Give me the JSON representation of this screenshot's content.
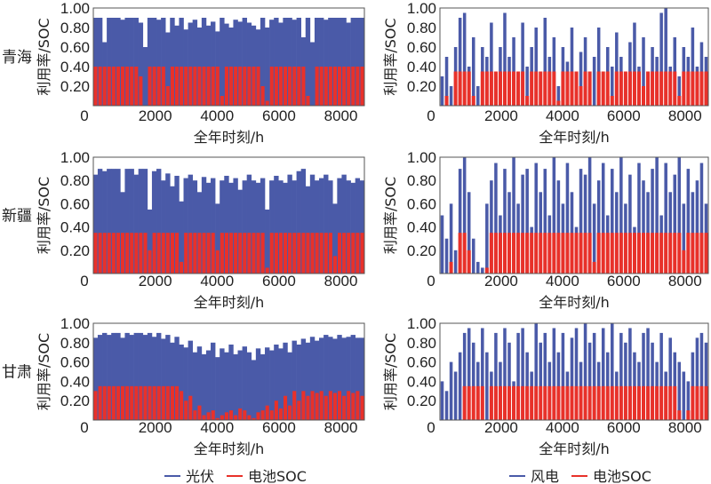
{
  "chart_data": [
    {
      "region": "青海",
      "type": "bar",
      "xlabel": "全年时刻/h",
      "ylabel": "利用率/SOC",
      "xlim": [
        0,
        8760
      ],
      "ylim": [
        0,
        1
      ],
      "xticks": [
        "0",
        "2000",
        "4000",
        "6000",
        "8000"
      ],
      "yticks": [
        "0.20",
        "0.40",
        "0.60",
        "0.80",
        "1.00"
      ],
      "series": [
        {
          "name": "光伏",
          "values": [
            0.9,
            0.9,
            0.65,
            0.9,
            0.9,
            0.9,
            0.88,
            0.9,
            0.9,
            0.9,
            0.85,
            0.6,
            0.9,
            0.9,
            0.88,
            0.9,
            0.75,
            0.9,
            0.82,
            0.9,
            0.78,
            0.85,
            0.88,
            0.8,
            0.9,
            0.82,
            0.86,
            0.76,
            0.9,
            0.84,
            0.8,
            0.88,
            0.86,
            0.9,
            0.85,
            0.82,
            0.78,
            0.9,
            0.8,
            0.88,
            0.9,
            0.85,
            0.9,
            0.9,
            0.88,
            0.9,
            0.7,
            0.9,
            0.65,
            0.9,
            0.9,
            0.88,
            0.9,
            0.9,
            0.9,
            0.9,
            0.85,
            0.9,
            0.9,
            0.9
          ]
        },
        {
          "name": "电池SOC",
          "values": [
            0.4,
            0.4,
            0.4,
            0.4,
            0.4,
            0.4,
            0.4,
            0.4,
            0.4,
            0.4,
            0.3,
            0,
            0.4,
            0.4,
            0.4,
            0.4,
            0.2,
            0.4,
            0.4,
            0.4,
            0.4,
            0.4,
            0.4,
            0.4,
            0.4,
            0.4,
            0.4,
            0.4,
            0.1,
            0.4,
            0.4,
            0.4,
            0.4,
            0.4,
            0.4,
            0.4,
            0.4,
            0.2,
            0.05,
            0.4,
            0.4,
            0.4,
            0.4,
            0.4,
            0.4,
            0.4,
            0.4,
            0.1,
            0,
            0.4,
            0.4,
            0.4,
            0.4,
            0.4,
            0.4,
            0.4,
            0.4,
            0.4,
            0.4,
            0.4
          ]
        }
      ]
    },
    {
      "region": "",
      "type": "bar",
      "xlabel": "全年时刻/h",
      "ylabel": "利用率/SOC",
      "xlim": [
        0,
        8760
      ],
      "ylim": [
        0,
        1
      ],
      "xticks": [
        "0",
        "2000",
        "4000",
        "6000",
        "8000"
      ],
      "yticks": [
        "0.20",
        "0.40",
        "0.60",
        "0.80",
        "1.00"
      ],
      "series": [
        {
          "name": "风电",
          "values": [
            0.3,
            0.5,
            0.2,
            0.6,
            0.9,
            0.95,
            0.4,
            0.7,
            0.2,
            0.6,
            0.5,
            0.85,
            0.3,
            0.6,
            0.95,
            0.5,
            0.7,
            0.25,
            0.85,
            0.4,
            0.6,
            0.8,
            0.3,
            0.9,
            0.5,
            0.7,
            0.2,
            0.6,
            0.45,
            0.8,
            0.3,
            0.55,
            0.7,
            0.2,
            0.5,
            0.8,
            0.35,
            0.6,
            0.4,
            0.75,
            0.5,
            0.3,
            0.65,
            0.85,
            0.4,
            0.7,
            0.3,
            0.6,
            0.5,
            0.95,
            1.0,
            0.4,
            0.7,
            0.3,
            0.6,
            0.5,
            0.8,
            0.4,
            0.65,
            0.5
          ]
        },
        {
          "name": "电池SOC",
          "values": [
            0,
            0.1,
            0,
            0.35,
            0.35,
            0.35,
            0.35,
            0.1,
            0,
            0.35,
            0.35,
            0.35,
            0.35,
            0.35,
            0.35,
            0.35,
            0.35,
            0.35,
            0.35,
            0.1,
            0.35,
            0.35,
            0.35,
            0.35,
            0.35,
            0.35,
            0.05,
            0.35,
            0.35,
            0.35,
            0.35,
            0.2,
            0.35,
            0.35,
            0,
            0.35,
            0.35,
            0.35,
            0.1,
            0.35,
            0.35,
            0.35,
            0.35,
            0.35,
            0.35,
            0.2,
            0.35,
            0.35,
            0.35,
            0.35,
            0.35,
            0.35,
            0.35,
            0.1,
            0.35,
            0.35,
            0.35,
            0.35,
            0.35,
            0.35
          ]
        }
      ]
    },
    {
      "region": "新疆",
      "type": "bar",
      "xlabel": "全年时刻/h",
      "ylabel": "利用率/SOC",
      "xlim": [
        0,
        8760
      ],
      "ylim": [
        0,
        1
      ],
      "xticks": [
        "0",
        "2000",
        "4000",
        "6000",
        "8000"
      ],
      "yticks": [
        "0.20",
        "0.40",
        "0.60",
        "0.80",
        "1.00"
      ],
      "series": [
        {
          "name": "光伏",
          "values": [
            0.85,
            0.9,
            0.88,
            0.9,
            0.9,
            0.9,
            0.7,
            0.9,
            0.9,
            0.85,
            0.9,
            0.9,
            0.55,
            0.88,
            0.9,
            0.8,
            0.86,
            0.75,
            0.84,
            0.62,
            0.82,
            0.85,
            0.8,
            0.7,
            0.83,
            0.78,
            0.82,
            0.6,
            0.8,
            0.84,
            0.78,
            0.82,
            0.72,
            0.8,
            0.85,
            0.8,
            0.78,
            0.82,
            0.55,
            0.8,
            0.84,
            0.8,
            0.78,
            0.85,
            0.8,
            0.88,
            0.9,
            0.75,
            0.85,
            0.8,
            0.82,
            0.85,
            0.8,
            0.6,
            0.82,
            0.85,
            0.8,
            0.78,
            0.82,
            0.8
          ]
        },
        {
          "name": "电池SOC",
          "values": [
            0.35,
            0.35,
            0.35,
            0.35,
            0.35,
            0.35,
            0.35,
            0.35,
            0.35,
            0.35,
            0.35,
            0.35,
            0.2,
            0.35,
            0.35,
            0.35,
            0.35,
            0.35,
            0.35,
            0.1,
            0.35,
            0.35,
            0.35,
            0.35,
            0.35,
            0.35,
            0.35,
            0.2,
            0.35,
            0.35,
            0.35,
            0.35,
            0.35,
            0.35,
            0.35,
            0.35,
            0.35,
            0.35,
            0.05,
            0.35,
            0.35,
            0.35,
            0.35,
            0.35,
            0.35,
            0.35,
            0.35,
            0.35,
            0.35,
            0.35,
            0.35,
            0.35,
            0.35,
            0.15,
            0.35,
            0.35,
            0.35,
            0.35,
            0.35,
            0.35
          ]
        }
      ]
    },
    {
      "region": "",
      "type": "bar",
      "xlabel": "全年时刻/h",
      "ylabel": "利用率/SOC",
      "xlim": [
        0,
        8760
      ],
      "ylim": [
        0,
        1
      ],
      "xticks": [
        "0",
        "2000",
        "4000",
        "6000",
        "8000"
      ],
      "yticks": [
        "0.20",
        "0.40",
        "0.60",
        "0.80",
        "1.00"
      ],
      "series": [
        {
          "name": "风电",
          "values": [
            0.5,
            0.3,
            0.6,
            0.2,
            0.9,
            1.0,
            0.7,
            0.3,
            0.1,
            0.05,
            0.6,
            0.8,
            0.95,
            0.5,
            0.9,
            0.7,
            1.0,
            0.6,
            0.85,
            0.9,
            0.4,
            0.95,
            0.7,
            0.9,
            0.5,
            1.0,
            0.8,
            0.6,
            0.95,
            0.7,
            0.4,
            0.9,
            0.85,
            1.0,
            0.6,
            0.8,
            0.95,
            0.5,
            0.9,
            0.7,
            1.0,
            0.6,
            0.85,
            0.4,
            0.95,
            0.8,
            0.7,
            0.9,
            1.0,
            0.5,
            0.95,
            0.7,
            0.85,
            1.0,
            0.6,
            0.9,
            0.7,
            0.8,
            0.95,
            0.6
          ]
        },
        {
          "name": "电池SOC",
          "values": [
            0,
            0,
            0.1,
            0,
            0.35,
            0.35,
            0.2,
            0,
            0,
            0,
            0.05,
            0.35,
            0.35,
            0.35,
            0.35,
            0.35,
            0.35,
            0.35,
            0.35,
            0.35,
            0.35,
            0.35,
            0.35,
            0.35,
            0.35,
            0.35,
            0.35,
            0.35,
            0.35,
            0.35,
            0.35,
            0.35,
            0.35,
            0.35,
            0.1,
            0.35,
            0.35,
            0.35,
            0.35,
            0.35,
            0.35,
            0.35,
            0.35,
            0.35,
            0.35,
            0.35,
            0.35,
            0.35,
            0.35,
            0.35,
            0.35,
            0.35,
            0.35,
            0.35,
            0.2,
            0.35,
            0.35,
            0.35,
            0.35,
            0.35
          ]
        }
      ]
    },
    {
      "region": "甘肃",
      "type": "bar",
      "xlabel": "全年时刻/h",
      "ylabel": "利用率/SOC",
      "xlim": [
        0,
        8760
      ],
      "ylim": [
        0,
        1
      ],
      "xticks": [
        "0",
        "2000",
        "4000",
        "6000",
        "8000"
      ],
      "yticks": [
        "0.20",
        "0.40",
        "0.60",
        "0.80",
        "1.00"
      ],
      "series": [
        {
          "name": "光伏",
          "values": [
            0.85,
            0.88,
            0.9,
            0.88,
            0.9,
            0.9,
            0.85,
            0.9,
            0.88,
            0.9,
            0.9,
            0.88,
            0.9,
            0.86,
            0.9,
            0.84,
            0.88,
            0.8,
            0.86,
            0.78,
            0.75,
            0.82,
            0.7,
            0.76,
            0.68,
            0.72,
            0.8,
            0.65,
            0.74,
            0.7,
            0.78,
            0.68,
            0.72,
            0.76,
            0.7,
            0.62,
            0.74,
            0.68,
            0.75,
            0.72,
            0.78,
            0.74,
            0.8,
            0.7,
            0.82,
            0.78,
            0.84,
            0.8,
            0.86,
            0.82,
            0.85,
            0.88,
            0.86,
            0.84,
            0.88,
            0.85,
            0.86,
            0.88,
            0.85,
            0.85
          ]
        },
        {
          "name": "电池SOC",
          "values": [
            0.3,
            0.35,
            0.35,
            0.35,
            0.35,
            0.35,
            0.35,
            0.35,
            0.35,
            0.35,
            0.35,
            0.35,
            0.35,
            0.35,
            0.35,
            0.35,
            0.35,
            0.35,
            0.35,
            0.3,
            0.2,
            0.25,
            0.1,
            0.15,
            0.05,
            0.08,
            0.1,
            0.02,
            0.05,
            0.08,
            0.1,
            0.05,
            0.12,
            0.1,
            0.05,
            0.02,
            0.08,
            0.1,
            0.15,
            0.1,
            0.2,
            0.12,
            0.25,
            0.15,
            0.3,
            0.2,
            0.3,
            0.25,
            0.3,
            0.28,
            0.3,
            0.25,
            0.3,
            0.28,
            0.3,
            0.25,
            0.3,
            0.28,
            0.3,
            0.25
          ]
        }
      ]
    },
    {
      "region": "",
      "type": "bar",
      "xlabel": "全年时刻/h",
      "ylabel": "利用率/SOC",
      "xlim": [
        0,
        8760
      ],
      "ylim": [
        0,
        1
      ],
      "xticks": [
        "0",
        "2000",
        "4000",
        "6000",
        "8000"
      ],
      "yticks": [
        "0.20",
        "0.40",
        "0.60",
        "0.80",
        "1.00"
      ],
      "series": [
        {
          "name": "风电",
          "values": [
            0.4,
            0.3,
            0.6,
            0.5,
            0.7,
            0.9,
            0.95,
            0.8,
            0.6,
            0.95,
            0.7,
            0.5,
            0.9,
            0.6,
            0.95,
            0.8,
            0.4,
            0.9,
            0.95,
            0.7,
            0.5,
            1.0,
            0.8,
            0.9,
            0.6,
            0.95,
            0.7,
            0.9,
            0.5,
            0.85,
            0.95,
            0.6,
            1.0,
            0.8,
            0.9,
            0.6,
            0.95,
            0.7,
            1.0,
            0.5,
            0.9,
            0.8,
            0.95,
            0.7,
            0.6,
            0.9,
            0.95,
            0.8,
            0.6,
            0.9,
            0.5,
            0.85,
            0.7,
            0.6,
            0.5,
            0.4,
            0.7,
            0.85,
            0.9,
            0.8
          ]
        },
        {
          "name": "电池SOC",
          "values": [
            0,
            0,
            0,
            0,
            0,
            0.35,
            0.35,
            0.35,
            0.35,
            0.35,
            0,
            0.35,
            0.35,
            0.35,
            0.35,
            0.35,
            0.35,
            0.35,
            0.35,
            0.35,
            0.35,
            0.35,
            0.35,
            0.35,
            0.35,
            0.35,
            0.35,
            0.35,
            0.35,
            0.35,
            0.35,
            0.35,
            0.35,
            0.35,
            0.35,
            0.35,
            0.35,
            0.35,
            0.35,
            0.35,
            0.35,
            0.35,
            0.35,
            0.35,
            0.35,
            0.35,
            0.35,
            0.35,
            0.35,
            0.35,
            0.35,
            0.35,
            0.35,
            0.1,
            0,
            0.1,
            0.35,
            0.35,
            0.35,
            0.35
          ]
        }
      ]
    }
  ],
  "legends": {
    "left": [
      {
        "label": "光伏",
        "color": "#4a5aa8"
      },
      {
        "label": "电池SOC",
        "color": "#e8312a"
      }
    ],
    "right": [
      {
        "label": "风电",
        "color": "#4a5aa8"
      },
      {
        "label": "电池SOC",
        "color": "#e8312a"
      }
    ]
  },
  "colors": {
    "primary": "#4a5aa8",
    "soc": "#e8312a"
  }
}
